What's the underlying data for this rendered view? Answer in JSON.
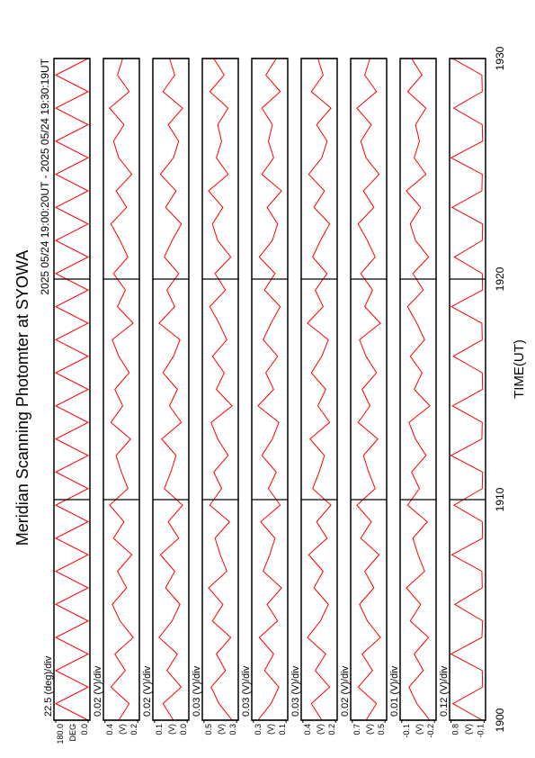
{
  "title": "Meridian Scanning Photomter at SYOWA",
  "subtitle": "2025 05/24 19:00:20UT - 2025 05/24 19:30:19UT",
  "xlabel": "TIME(UT)",
  "xlim": [
    1900,
    1930
  ],
  "xticks": [
    1900,
    1910,
    1920,
    1930
  ],
  "x": [
    1900,
    1900.75,
    1901.5,
    1902.25,
    1903,
    1903.75,
    1904.5,
    1905.25,
    1906,
    1906.75,
    1907.5,
    1908.25,
    1909,
    1909.75,
    1910.5,
    1911.25,
    1912,
    1912.75,
    1913.5,
    1914.25,
    1915,
    1915.75,
    1916.5,
    1917.25,
    1918,
    1918.75,
    1919.5,
    1920.25,
    1921,
    1921.75,
    1922.5,
    1923.25,
    1924,
    1924.75,
    1925.5,
    1926.25,
    1927,
    1927.75,
    1928.5,
    1929.25,
    1930
  ],
  "chart_data": [
    {
      "type": "line",
      "label": "22.5 (deg)/div",
      "unit": "DEG",
      "color": "#ff0000",
      "ylim": [
        -10,
        190
      ],
      "yticks": [
        {
          "value": 0,
          "label": "0.0"
        },
        {
          "value": 180,
          "label": "180.0"
        }
      ],
      "values": [
        0,
        180,
        0,
        180,
        0,
        180,
        0,
        180,
        0,
        180,
        0,
        180,
        0,
        180,
        0,
        180,
        0,
        180,
        0,
        180,
        0,
        180,
        0,
        180,
        0,
        180,
        0,
        180,
        0,
        180,
        0,
        180,
        0,
        180,
        0,
        180,
        0,
        180,
        0,
        180,
        0
      ]
    },
    {
      "type": "line",
      "label": "0.02 (V)/div",
      "unit": "(V)",
      "color": "#ff0000",
      "ylim": [
        0.19,
        0.41
      ],
      "yticks": [
        0.2,
        0.4
      ],
      "values": [
        0.316,
        0.252,
        0.364,
        0.276,
        0.34,
        0.228,
        0.308,
        0.356,
        0.268,
        0.324,
        0.236,
        0.348,
        0.284,
        0.372,
        0.26,
        0.3,
        0.332,
        0.244,
        0.364,
        0.292,
        0.34,
        0.252,
        0.316,
        0.356,
        0.228,
        0.324,
        0.276,
        0.348,
        0.26,
        0.308,
        0.364,
        0.268,
        0.332,
        0.236,
        0.316,
        0.348,
        0.284,
        0.372,
        0.252,
        0.324,
        0.292
      ]
    },
    {
      "type": "line",
      "label": "0.02 (V)/div",
      "unit": "(V)",
      "color": "#ff0000",
      "ylim": [
        -0.005,
        0.105
      ],
      "yticks": [
        {
          "value": 0,
          "label": "0.0"
        },
        0.1
      ],
      "values": [
        0.042,
        0.074,
        0.018,
        0.062,
        0.03,
        0.086,
        0.046,
        0.022,
        0.066,
        0.038,
        0.082,
        0.026,
        0.058,
        0.014,
        0.07,
        0.05,
        0.034,
        0.078,
        0.018,
        0.054,
        0.03,
        0.074,
        0.042,
        0.022,
        0.086,
        0.038,
        0.062,
        0.026,
        0.07,
        0.046,
        0.018,
        0.066,
        0.034,
        0.082,
        0.042,
        0.026,
        0.058,
        0.014,
        0.074,
        0.038,
        0.054
      ]
    },
    {
      "type": "line",
      "label": "0.03 (V)/div",
      "unit": "(V)",
      "color": "#ff0000",
      "ylim": [
        0.29,
        0.51
      ],
      "yticks": [
        0.3,
        0.5
      ],
      "values": [
        0.328,
        0.408,
        0.456,
        0.368,
        0.424,
        0.336,
        0.448,
        0.384,
        0.472,
        0.36,
        0.4,
        0.432,
        0.344,
        0.464,
        0.392,
        0.44,
        0.352,
        0.416,
        0.456,
        0.328,
        0.424,
        0.376,
        0.448,
        0.36,
        0.408,
        0.464,
        0.368,
        0.432,
        0.336,
        0.416,
        0.448,
        0.384,
        0.472,
        0.352,
        0.424,
        0.392,
        0.416,
        0.352,
        0.464,
        0.376,
        0.44
      ]
    },
    {
      "type": "line",
      "label": "0.03 (V)/div",
      "unit": "(V)",
      "color": "#ff0000",
      "ylim": [
        0.09,
        0.31
      ],
      "yticks": [
        0.1,
        0.3
      ],
      "values": [
        0.272,
        0.192,
        0.144,
        0.232,
        0.176,
        0.264,
        0.152,
        0.216,
        0.128,
        0.24,
        0.2,
        0.168,
        0.256,
        0.136,
        0.208,
        0.16,
        0.248,
        0.184,
        0.144,
        0.272,
        0.176,
        0.224,
        0.152,
        0.24,
        0.192,
        0.136,
        0.232,
        0.168,
        0.264,
        0.184,
        0.152,
        0.216,
        0.128,
        0.248,
        0.176,
        0.208,
        0.184,
        0.248,
        0.136,
        0.224,
        0.16
      ]
    },
    {
      "type": "line",
      "label": "0.03 (V)/div",
      "unit": "(V)",
      "color": "#ff0000",
      "ylim": [
        0.19,
        0.41
      ],
      "yticks": [
        0.2,
        0.4
      ],
      "values": [
        0.284,
        0.348,
        0.236,
        0.324,
        0.26,
        0.372,
        0.292,
        0.244,
        0.332,
        0.276,
        0.364,
        0.252,
        0.316,
        0.228,
        0.34,
        0.3,
        0.268,
        0.356,
        0.236,
        0.308,
        0.26,
        0.348,
        0.284,
        0.244,
        0.372,
        0.276,
        0.324,
        0.252,
        0.34,
        0.292,
        0.236,
        0.332,
        0.268,
        0.364,
        0.284,
        0.252,
        0.316,
        0.228,
        0.348,
        0.276,
        0.308
      ]
    },
    {
      "type": "line",
      "label": "0.02 (V)/div",
      "unit": "(V)",
      "color": "#ff0000",
      "ylim": [
        0.49,
        0.71
      ],
      "yticks": [
        0.5,
        0.7
      ],
      "values": [
        0.616,
        0.552,
        0.664,
        0.576,
        0.64,
        0.528,
        0.608,
        0.656,
        0.568,
        0.624,
        0.536,
        0.648,
        0.584,
        0.672,
        0.56,
        0.6,
        0.632,
        0.544,
        0.664,
        0.592,
        0.64,
        0.552,
        0.616,
        0.656,
        0.528,
        0.624,
        0.576,
        0.648,
        0.56,
        0.608,
        0.664,
        0.568,
        0.632,
        0.536,
        0.616,
        0.648,
        0.584,
        0.672,
        0.552,
        0.624,
        0.592
      ]
    },
    {
      "type": "line",
      "label": "0.01 (V)/div",
      "unit": "(V)",
      "color": "#ff0000",
      "ylim": [
        -0.205,
        -0.095
      ],
      "yticks": [
        -0.2,
        -0.1
      ],
      "values": [
        -0.186,
        -0.146,
        -0.122,
        -0.166,
        -0.138,
        -0.182,
        -0.126,
        -0.158,
        -0.114,
        -0.17,
        -0.15,
        -0.134,
        -0.178,
        -0.118,
        -0.154,
        -0.13,
        -0.174,
        -0.142,
        -0.122,
        -0.186,
        -0.138,
        -0.162,
        -0.126,
        -0.17,
        -0.146,
        -0.118,
        -0.166,
        -0.134,
        -0.182,
        -0.142,
        -0.126,
        -0.158,
        -0.114,
        -0.174,
        -0.138,
        -0.154,
        -0.142,
        -0.174,
        -0.118,
        -0.162,
        -0.13
      ]
    },
    {
      "type": "line",
      "label": "0.12 (V)/div",
      "unit": "(V)",
      "color": "#ff0000",
      "ylim": [
        -0.14,
        0.84
      ],
      "yticks": [
        -0.1,
        0.8
      ],
      "values": [
        -0.05,
        0.75,
        -0.06,
        -0.05,
        0.8,
        -0.04,
        -0.06,
        0.7,
        -0.05,
        -0.04,
        0.78,
        -0.06,
        -0.05,
        0.72,
        -0.05,
        -0.06,
        0.8,
        -0.04,
        -0.05,
        0.76,
        -0.06,
        -0.05,
        0.74,
        -0.05,
        -0.04,
        0.79,
        -0.06,
        -0.05,
        0.71,
        -0.05,
        -0.06,
        0.77,
        -0.04,
        -0.05,
        0.8,
        -0.06,
        -0.05,
        0.73,
        -0.05,
        -0.04,
        0.76
      ]
    }
  ]
}
